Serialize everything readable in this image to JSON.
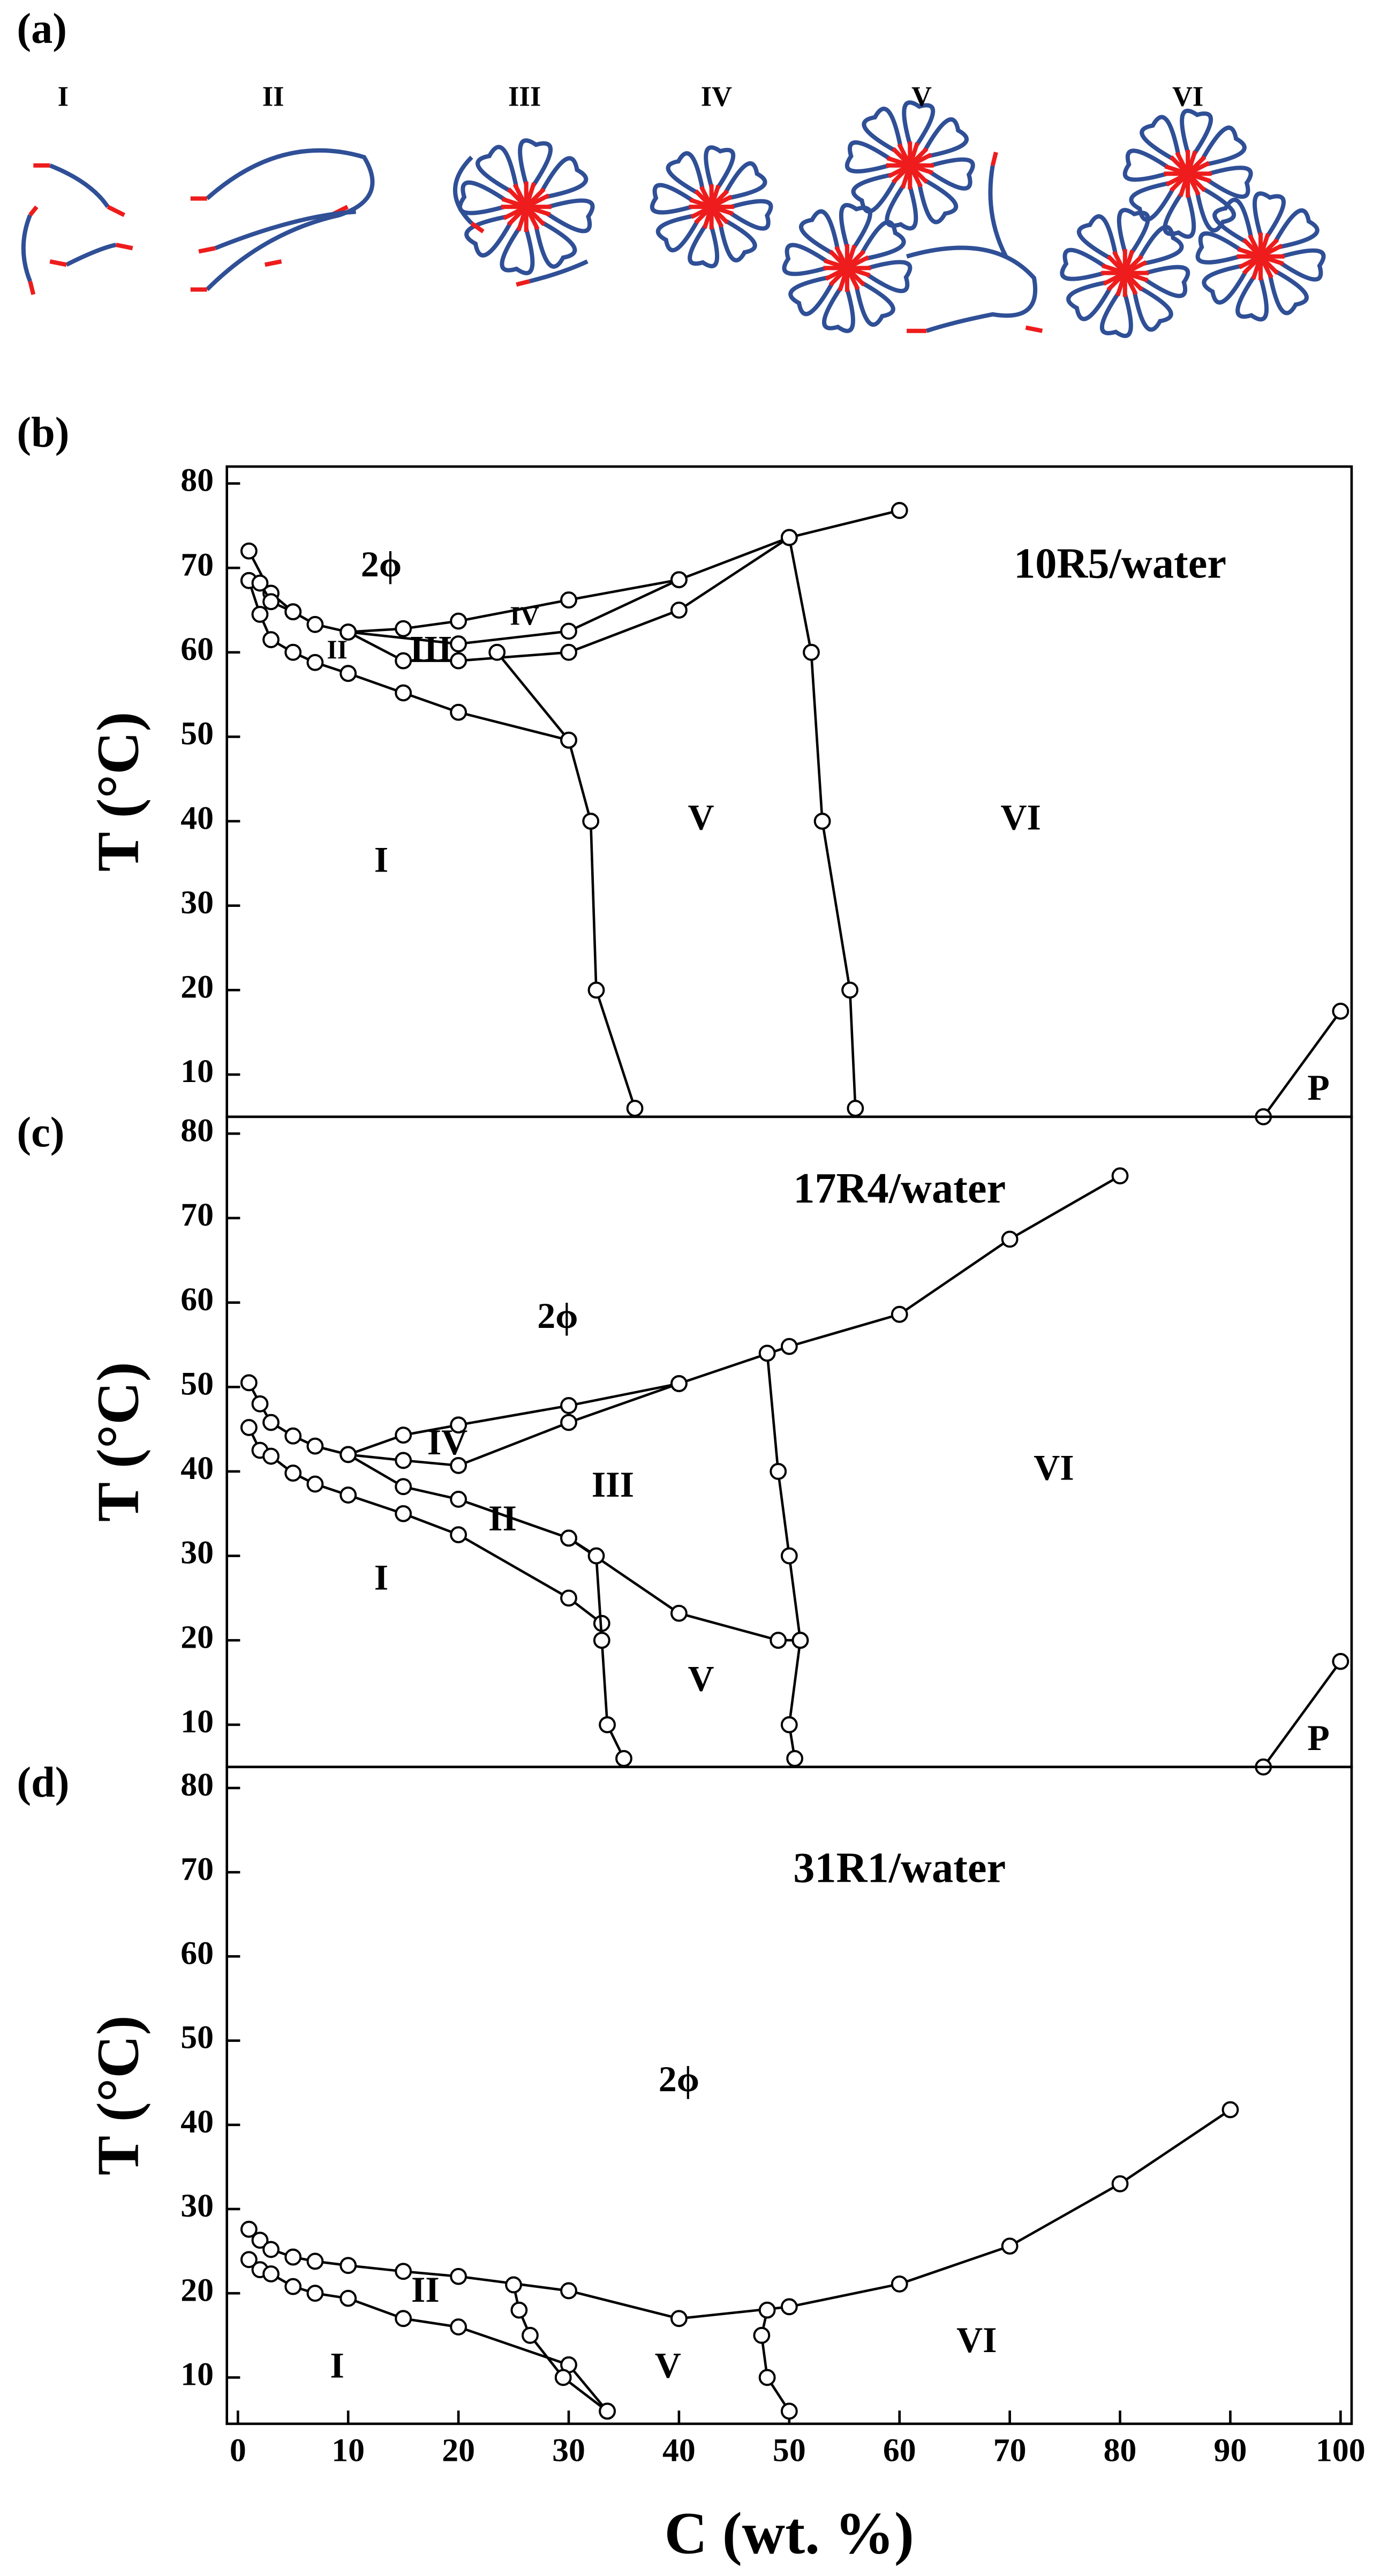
{
  "panel_a": {
    "label": "(a)",
    "structures": [
      "I",
      "II",
      "III",
      "IV",
      "V",
      "VI"
    ]
  },
  "chart_data": [
    {
      "type": "line",
      "panel_label": "(b)",
      "ylabel": "T (°C)",
      "xlim": [
        -1,
        101
      ],
      "ylim": [
        5,
        82
      ],
      "yticks": [
        10,
        20,
        30,
        40,
        50,
        60,
        70,
        80
      ],
      "color": "#000000",
      "series": [
        {
          "x": [
            1,
            3,
            5,
            7,
            10,
            15,
            20,
            30,
            40,
            50,
            60
          ],
          "values": [
            72,
            67,
            64.8,
            63.3,
            62.4,
            62.8,
            63.7,
            66.2,
            68.6,
            73.6,
            76.8
          ]
        },
        {
          "x": [
            10,
            20,
            30,
            40
          ],
          "values": [
            62.4,
            61,
            62.5,
            68.6
          ]
        },
        {
          "x": [
            10,
            15,
            20,
            30,
            40,
            50
          ],
          "values": [
            62.4,
            59,
            59,
            60,
            65,
            73.6
          ]
        },
        {
          "x": [
            1,
            2,
            3,
            5,
            7,
            10,
            15,
            20,
            30
          ],
          "values": [
            68.5,
            64.5,
            61.5,
            60,
            58.8,
            57.5,
            55.2,
            52.9,
            49.6
          ]
        },
        {
          "x": [
            1,
            2,
            3,
            5
          ],
          "values": [
            68.5,
            68.2,
            66,
            64.8
          ]
        },
        {
          "x": [
            23.5,
            30,
            32,
            32.5,
            36
          ],
          "values": [
            60,
            49.6,
            40,
            20,
            6
          ]
        },
        {
          "x": [
            50,
            52,
            53,
            55.5,
            56
          ],
          "values": [
            73.6,
            60,
            40,
            20,
            6
          ]
        },
        {
          "x": [
            93,
            100
          ],
          "values": [
            5,
            17.5
          ]
        }
      ],
      "annotations": [
        {
          "text": "10R5/water",
          "x": 80,
          "y": 70
        },
        {
          "text": "2ϕ",
          "x": 13,
          "y": 70
        },
        {
          "text": "II",
          "x": 9,
          "y": 60
        },
        {
          "text": "III",
          "x": 17.5,
          "y": 60
        },
        {
          "text": "IV",
          "x": 26,
          "y": 64
        },
        {
          "text": "I",
          "x": 13,
          "y": 35
        },
        {
          "text": "V",
          "x": 42,
          "y": 40
        },
        {
          "text": "VI",
          "x": 71,
          "y": 40
        },
        {
          "text": "P",
          "x": 98,
          "y": 8
        }
      ]
    },
    {
      "type": "line",
      "panel_label": "(c)",
      "ylabel": "T (°C)",
      "xlim": [
        -1,
        101
      ],
      "ylim": [
        5,
        82
      ],
      "yticks": [
        10,
        20,
        30,
        40,
        50,
        60,
        70,
        80
      ],
      "color": "#000000",
      "series": [
        {
          "x": [
            1,
            2,
            3,
            5,
            7,
            10,
            15,
            20,
            30,
            40,
            50,
            60,
            70,
            80
          ],
          "values": [
            50.5,
            48,
            45.8,
            44.2,
            43,
            42,
            44.3,
            45.5,
            47.8,
            50.4,
            54.8,
            58.6,
            67.5,
            75
          ]
        },
        {
          "x": [
            10,
            15,
            20,
            30,
            40
          ],
          "values": [
            42,
            41.3,
            40.7,
            45.8,
            50.4
          ]
        },
        {
          "x": [
            1,
            2,
            3,
            5,
            7,
            10,
            15,
            20,
            30,
            33
          ],
          "values": [
            45.2,
            42.5,
            41.8,
            39.8,
            38.5,
            37.2,
            35,
            32.5,
            25,
            22
          ]
        },
        {
          "x": [
            10,
            15,
            20,
            30,
            40,
            49,
            51
          ],
          "values": [
            42,
            38.2,
            36.7,
            32.1,
            23.2,
            20,
            20
          ]
        },
        {
          "x": [
            30,
            32.5,
            33,
            33.5,
            35
          ],
          "values": [
            32.1,
            30,
            20,
            10,
            6
          ]
        },
        {
          "x": [
            48,
            49,
            50,
            51,
            50,
            50.5
          ],
          "values": [
            54,
            40,
            30,
            20,
            10,
            6
          ]
        },
        {
          "x": [
            93,
            100
          ],
          "values": [
            5,
            17.5
          ]
        }
      ],
      "annotations": [
        {
          "text": "17R4/water",
          "x": 60,
          "y": 73
        },
        {
          "text": "2ϕ",
          "x": 29,
          "y": 58
        },
        {
          "text": "IV",
          "x": 19,
          "y": 43
        },
        {
          "text": "III",
          "x": 34,
          "y": 38
        },
        {
          "text": "II",
          "x": 24,
          "y": 34
        },
        {
          "text": "I",
          "x": 13,
          "y": 27
        },
        {
          "text": "V",
          "x": 42,
          "y": 15
        },
        {
          "text": "VI",
          "x": 74,
          "y": 40
        },
        {
          "text": "P",
          "x": 98,
          "y": 8
        }
      ]
    },
    {
      "type": "line",
      "panel_label": "(d)",
      "ylabel": "T (°C)",
      "xlabel": "C (wt. %)",
      "xlim": [
        -1,
        101
      ],
      "ylim": [
        4.5,
        82.5
      ],
      "xticks": [
        0,
        10,
        20,
        30,
        40,
        50,
        60,
        70,
        80,
        90,
        100
      ],
      "yticks": [
        10,
        20,
        30,
        40,
        50,
        60,
        70,
        80
      ],
      "color": "#000000",
      "series": [
        {
          "x": [
            1,
            2,
            3,
            5,
            7,
            10,
            15,
            20,
            30,
            40,
            50,
            60,
            70,
            80,
            90
          ],
          "values": [
            27.6,
            26.3,
            25.2,
            24.3,
            23.8,
            23.3,
            22.6,
            22,
            20.3,
            17,
            18.4,
            21.1,
            25.6,
            33,
            41.8
          ]
        },
        {
          "x": [
            1,
            2,
            3,
            5,
            7,
            10,
            15,
            20,
            30,
            33.5
          ],
          "values": [
            24,
            22.8,
            22.3,
            20.8,
            20,
            19.4,
            17,
            16,
            11.5,
            6
          ]
        },
        {
          "x": [
            25,
            25.5,
            26.5,
            29.5,
            33.5
          ],
          "values": [
            21,
            18,
            15,
            10,
            6
          ]
        },
        {
          "x": [
            48,
            47.5,
            48,
            50
          ],
          "values": [
            18,
            15,
            10,
            6
          ]
        }
      ],
      "annotations": [
        {
          "text": "31R1/water",
          "x": 60,
          "y": 70
        },
        {
          "text": "2ϕ",
          "x": 40,
          "y": 45
        },
        {
          "text": "II",
          "x": 17,
          "y": 20
        },
        {
          "text": "I",
          "x": 9,
          "y": 11
        },
        {
          "text": "V",
          "x": 39,
          "y": 11
        },
        {
          "text": "VI",
          "x": 67,
          "y": 14
        }
      ]
    }
  ]
}
